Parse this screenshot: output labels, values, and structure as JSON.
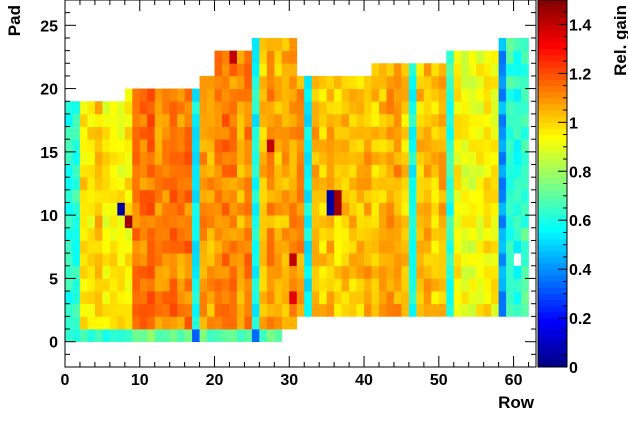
{
  "chart_data": {
    "type": "heatmap",
    "title": "",
    "xlabel": "Row",
    "ylabel": "Pad",
    "zlabel": "Rel. gain",
    "xlim": [
      0,
      63
    ],
    "ylim": [
      -2,
      27
    ],
    "zlim": [
      0,
      1.5
    ],
    "x_ticks": [
      0,
      10,
      20,
      30,
      40,
      50,
      60
    ],
    "y_ticks": [
      0,
      5,
      10,
      15,
      20,
      25
    ],
    "z_ticks": [
      0,
      0.2,
      0.4,
      0.6,
      0.8,
      1,
      1.2,
      1.4
    ],
    "x_tick_labels": [
      "0",
      "10",
      "20",
      "30",
      "40",
      "50",
      "60"
    ],
    "y_tick_labels": [
      "0",
      "5",
      "10",
      "15",
      "20",
      "25"
    ],
    "z_tick_labels": [
      "0",
      "0.2",
      "0.4",
      "0.6",
      "0.8",
      "1",
      "1.2",
      "1.4"
    ],
    "colormap": [
      "#00007f",
      "#0000ff",
      "#007fff",
      "#00ffff",
      "#7fff7f",
      "#ffff00",
      "#ff7f00",
      "#ff0000",
      "#7f0000"
    ],
    "grid": false,
    "row_pad_extent": [
      {
        "rows": [
          0,
          7
        ],
        "pads": [
          0,
          18
        ]
      },
      {
        "rows": [
          8,
          17
        ],
        "pads": [
          0,
          19
        ]
      },
      {
        "rows": [
          18,
          19
        ],
        "pads": [
          0,
          20
        ]
      },
      {
        "rows": [
          20,
          24
        ],
        "pads": [
          0,
          22
        ]
      },
      {
        "rows": [
          25,
          28
        ],
        "pads": [
          0,
          23
        ]
      },
      {
        "rows": [
          29,
          30
        ],
        "pads": [
          1,
          23
        ]
      },
      {
        "rows": [
          31,
          40
        ],
        "pads": [
          2,
          20
        ]
      },
      {
        "rows": [
          41,
          50
        ],
        "pads": [
          2,
          21
        ]
      },
      {
        "rows": [
          51,
          57
        ],
        "pads": [
          2,
          22
        ]
      },
      {
        "rows": [
          58,
          61
        ],
        "pads": [
          2,
          23
        ]
      }
    ],
    "row_mean_gain": {
      "bands": [
        {
          "rows": [
            0,
            1
          ],
          "gain": 0.6
        },
        {
          "rows": [
            2,
            8
          ],
          "gain": 0.98
        },
        {
          "rows": [
            9,
            16
          ],
          "gain": 1.12
        },
        {
          "rows": [
            17,
            17
          ],
          "gain": 0.6
        },
        {
          "rows": [
            18,
            24
          ],
          "gain": 1.1
        },
        {
          "rows": [
            25,
            25
          ],
          "gain": 0.55
        },
        {
          "rows": [
            26,
            31
          ],
          "gain": 1.05
        },
        {
          "rows": [
            32,
            32
          ],
          "gain": 0.6
        },
        {
          "rows": [
            33,
            45
          ],
          "gain": 1.05
        },
        {
          "rows": [
            46,
            46
          ],
          "gain": 0.6
        },
        {
          "rows": [
            47,
            50
          ],
          "gain": 1.02
        },
        {
          "rows": [
            51,
            51
          ],
          "gain": 0.6
        },
        {
          "rows": [
            52,
            57
          ],
          "gain": 0.95
        },
        {
          "rows": [
            58,
            58
          ],
          "gain": 0.45
        },
        {
          "rows": [
            59,
            61
          ],
          "gain": 0.62
        }
      ],
      "calibration_columns": [
        7,
        17,
        25,
        32,
        40,
        46,
        51,
        58
      ]
    },
    "outliers": [
      {
        "row": 7,
        "pad": 10,
        "gain": 0.05
      },
      {
        "row": 8,
        "pad": 9,
        "gain": 1.45
      },
      {
        "row": 22,
        "pad": 22,
        "gain": 1.4
      },
      {
        "row": 27,
        "pad": 15,
        "gain": 1.4
      },
      {
        "row": 30,
        "pad": 6,
        "gain": 1.4
      },
      {
        "row": 30,
        "pad": 3,
        "gain": 1.35
      },
      {
        "row": 35,
        "pad": 11,
        "gain": 0.05
      },
      {
        "row": 35,
        "pad": 10,
        "gain": 0.05
      },
      {
        "row": 36,
        "pad": 11,
        "gain": 1.45
      },
      {
        "row": 36,
        "pad": 10,
        "gain": 1.45
      },
      {
        "row": 60,
        "pad": 6,
        "gain": null
      }
    ]
  }
}
